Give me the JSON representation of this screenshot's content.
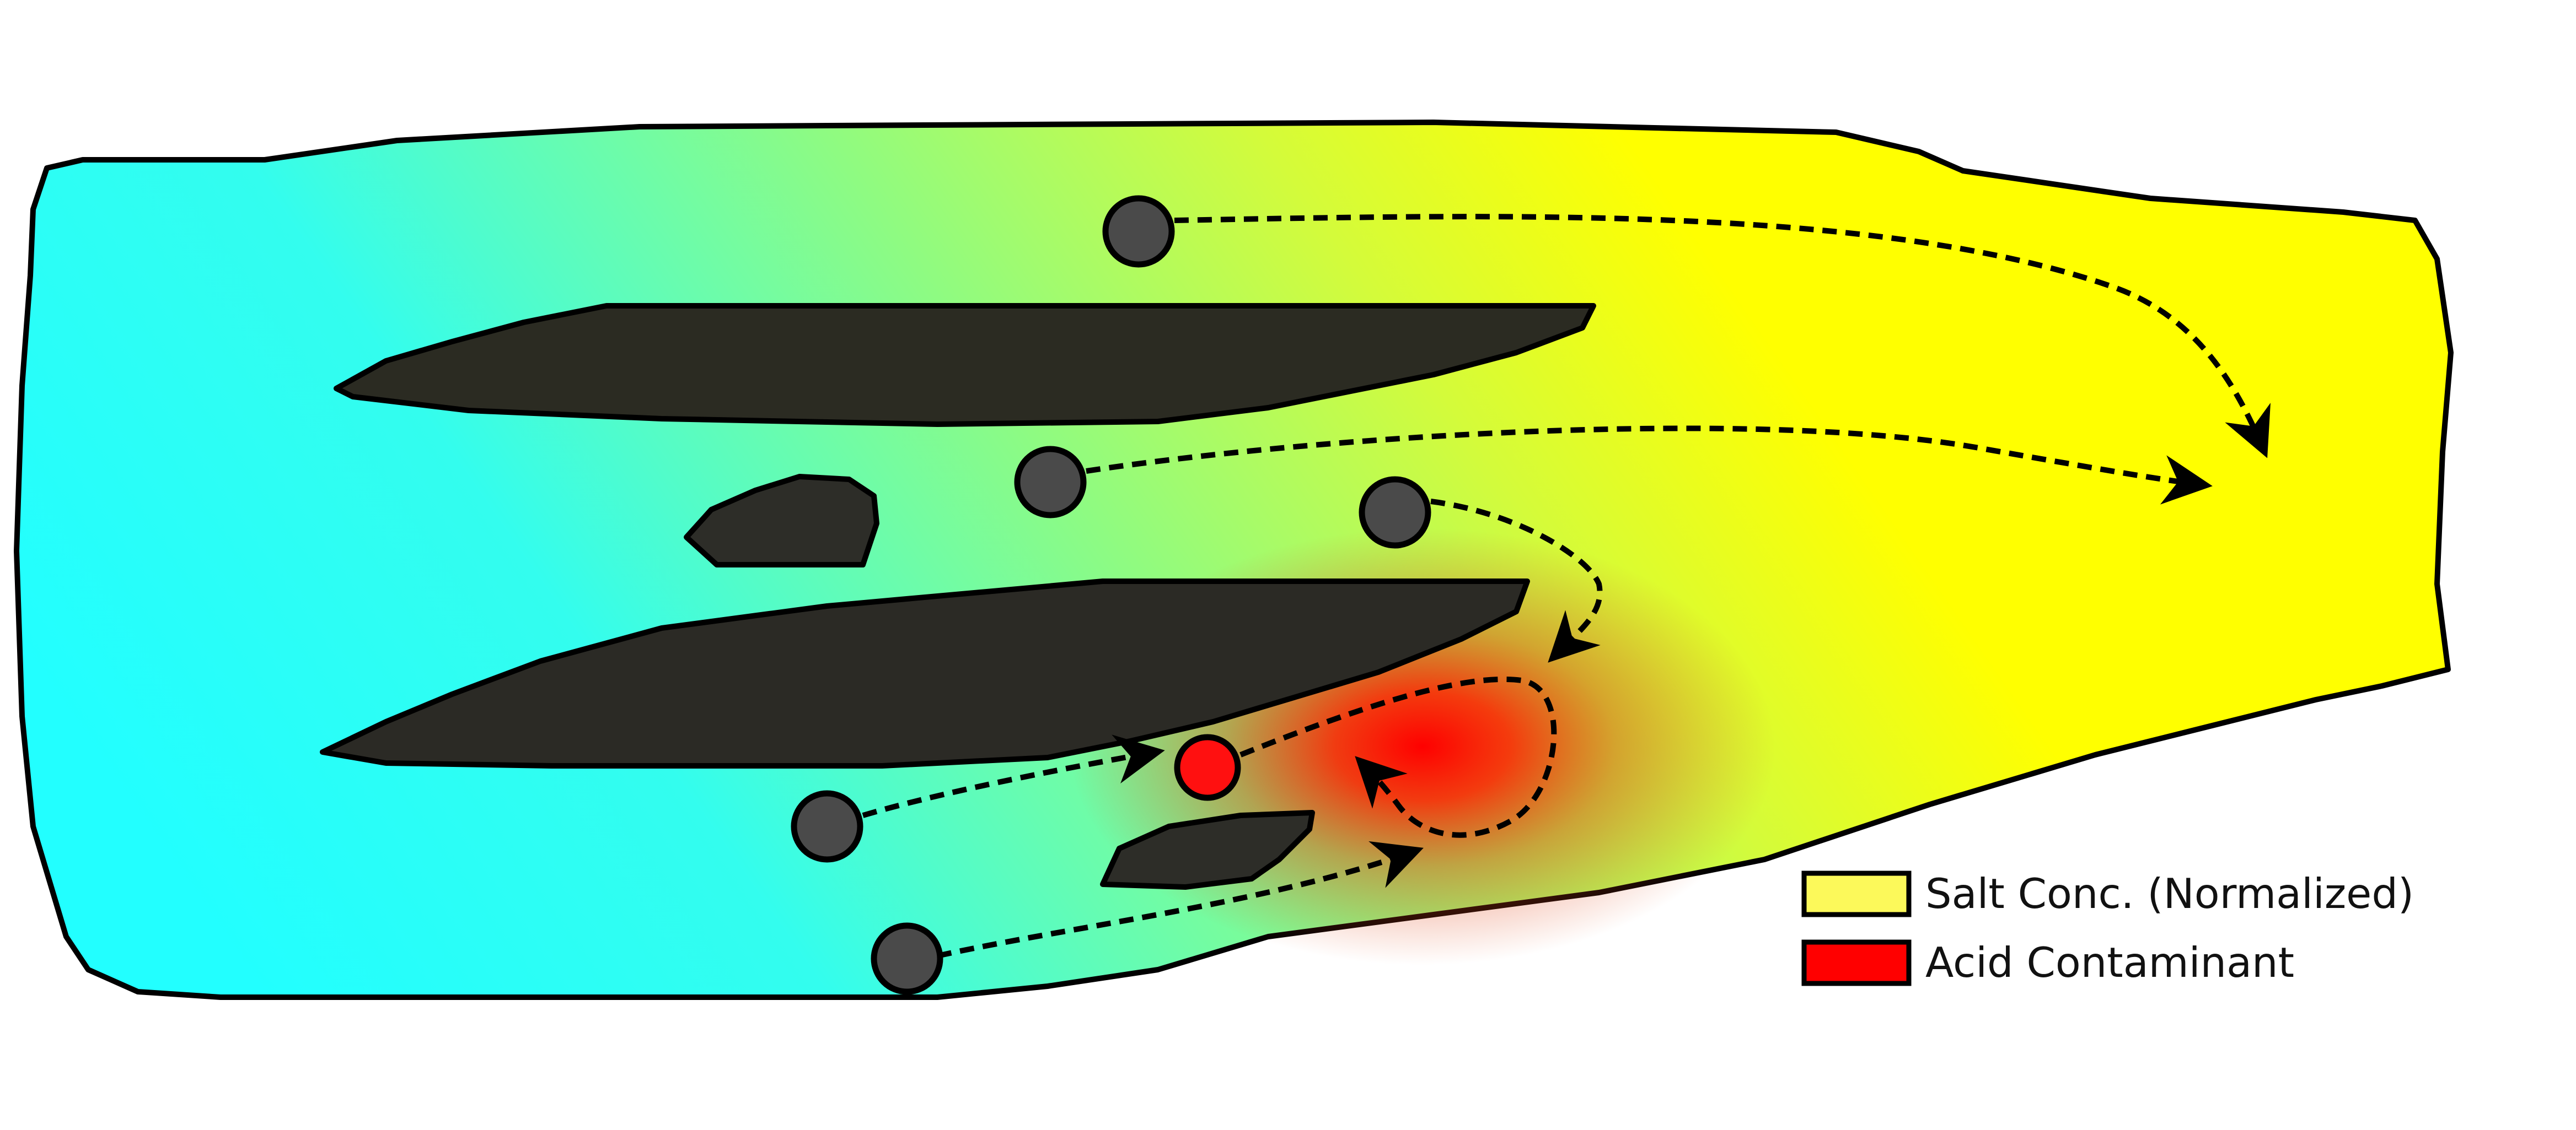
{
  "legend": {
    "salt": {
      "label": "Salt Conc. (Normalized)",
      "color": "#fcf95a"
    },
    "acid": {
      "label": "Acid Contaminant",
      "color": "#ff0000"
    }
  },
  "colors": {
    "gradient_low": "#22ffff",
    "gradient_mid": "#9cfb74",
    "gradient_high": "#ffff00",
    "barrier": "#2a2a22",
    "well": "#4a4a4a",
    "contaminated_well": "#ff1010",
    "plume": "#ff0000",
    "outline": "#000000"
  },
  "icons": {
    "flow_path": "dashed-arrow",
    "well": "filled-circle",
    "barrier": "dark-lens-shape"
  },
  "wells": [
    {
      "id": "w1",
      "contaminated": false
    },
    {
      "id": "w2",
      "contaminated": false
    },
    {
      "id": "w3",
      "contaminated": false
    },
    {
      "id": "w4",
      "contaminated": false
    },
    {
      "id": "w5",
      "contaminated": false
    },
    {
      "id": "w6",
      "contaminated": true
    }
  ]
}
